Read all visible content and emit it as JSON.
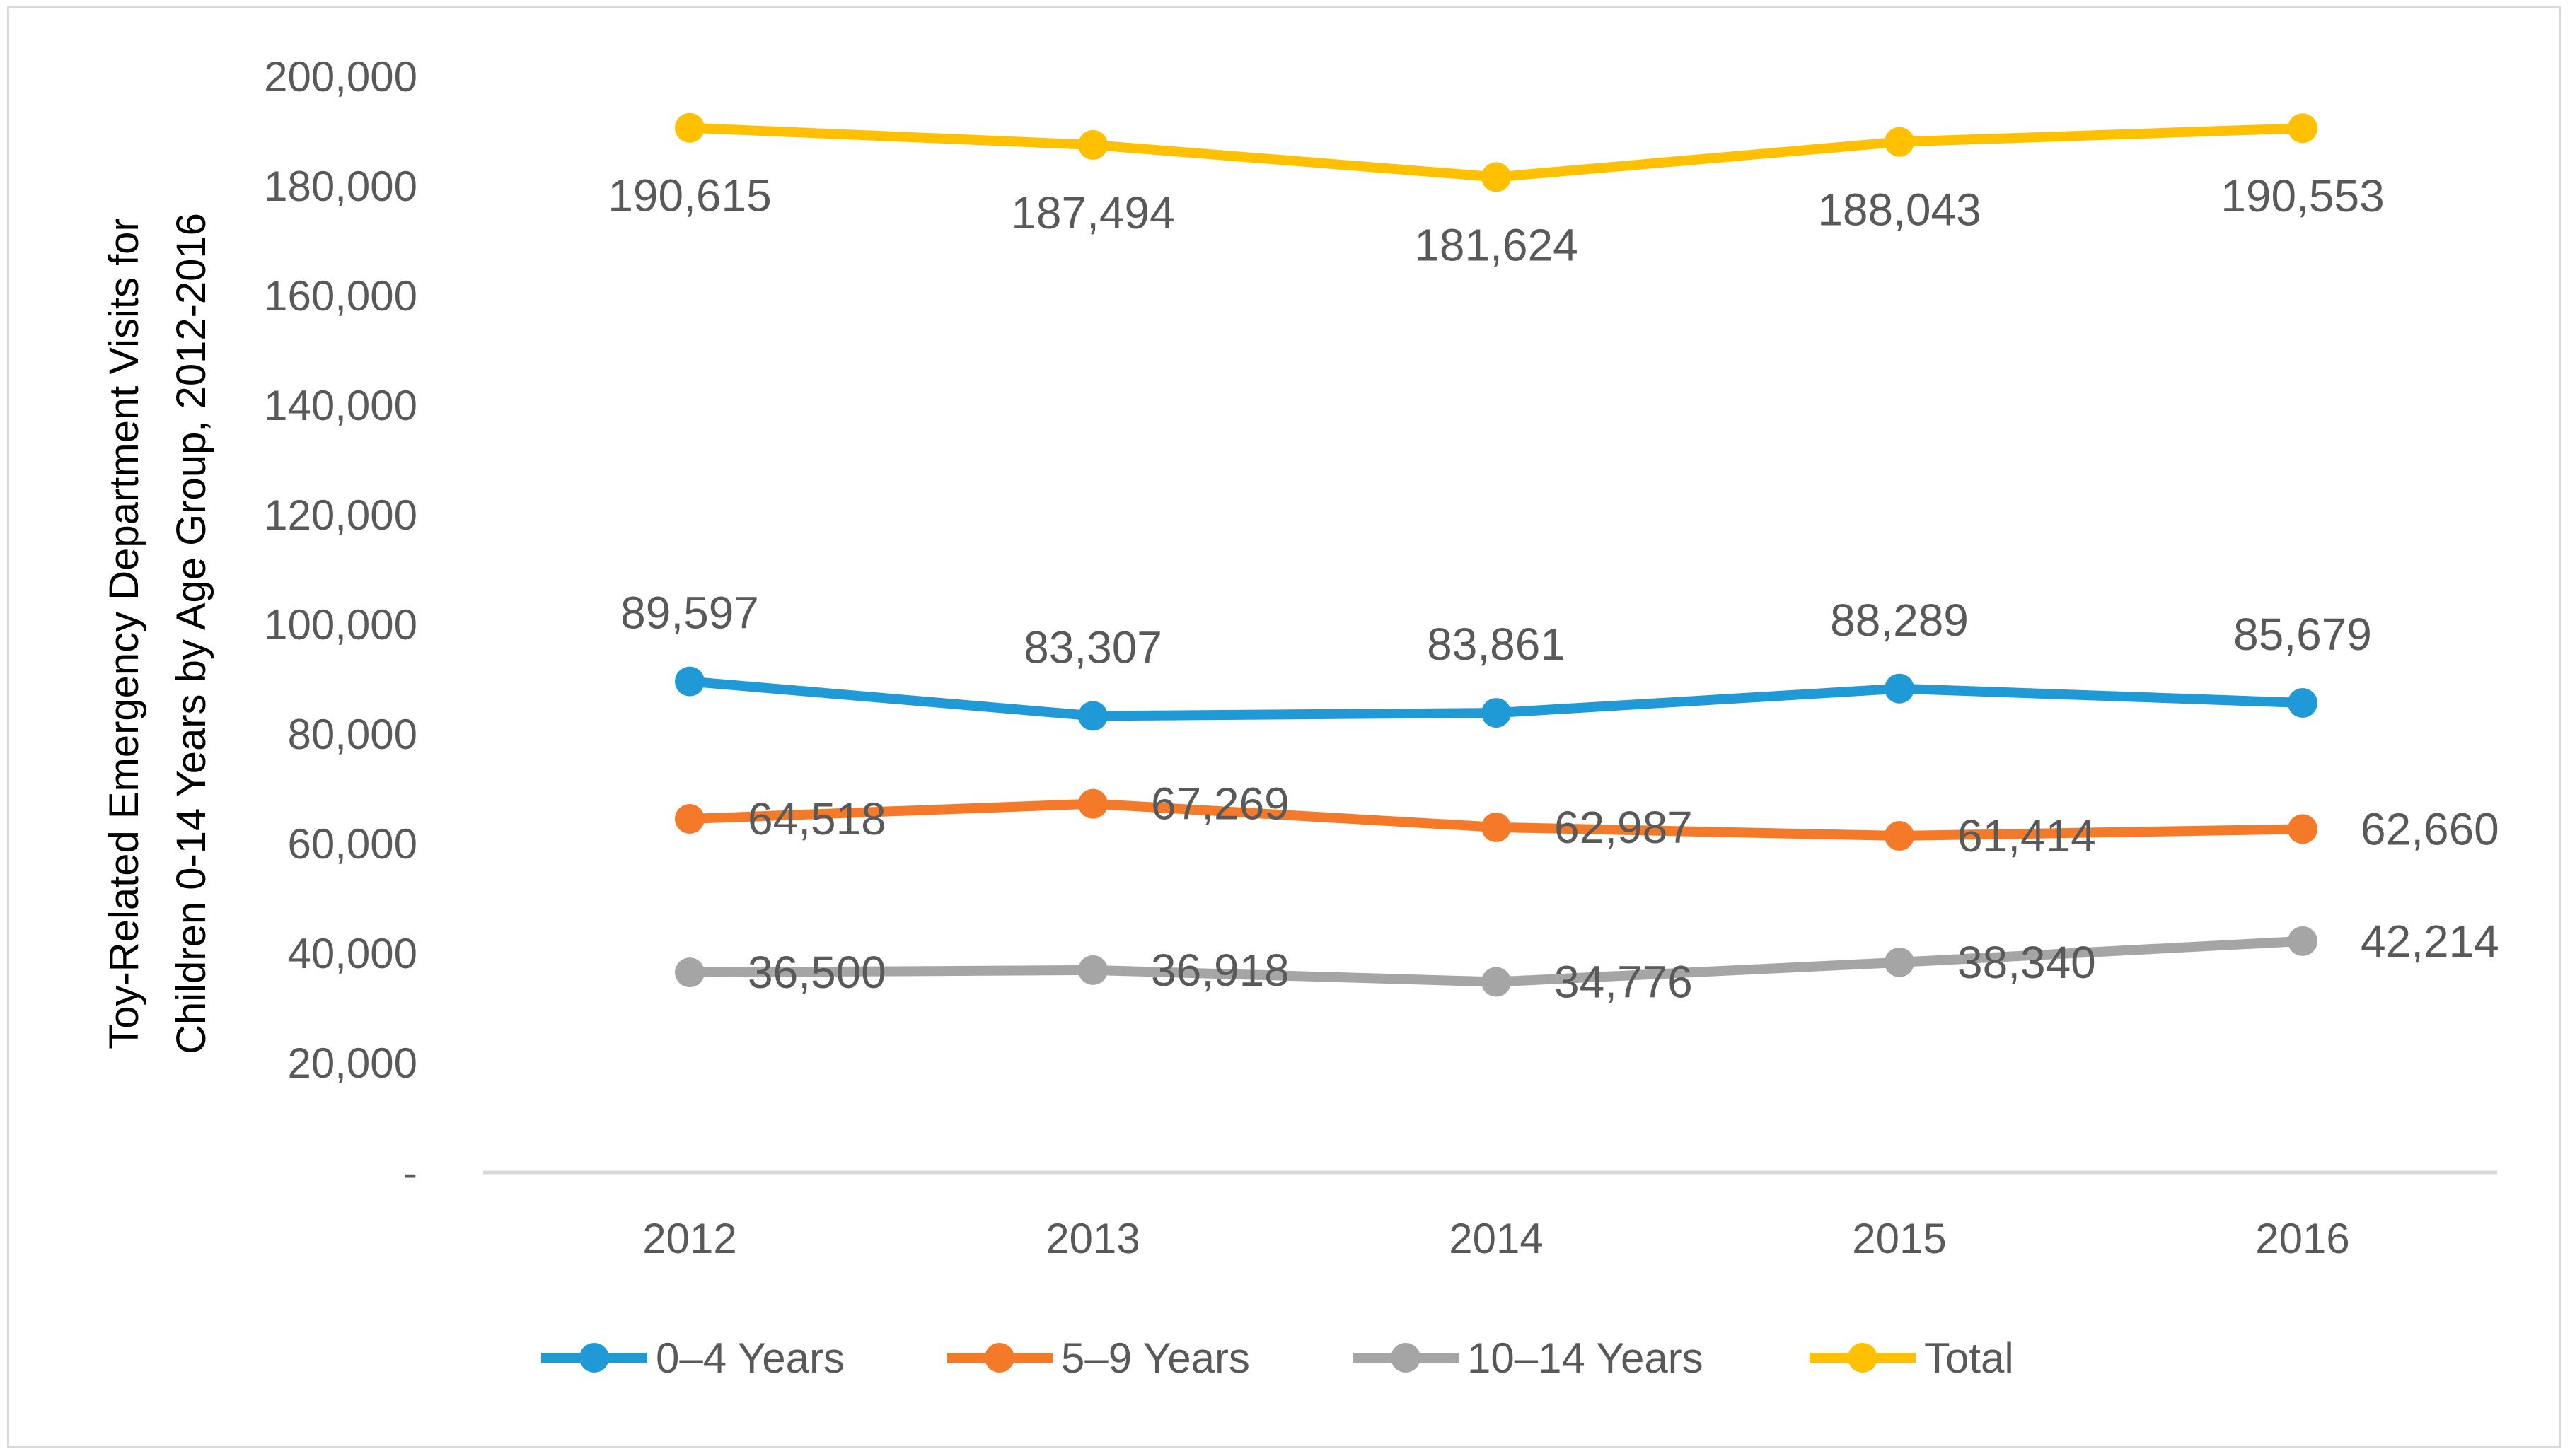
{
  "chart_data": {
    "type": "line",
    "title": "",
    "xlabel": "",
    "ylabel_lines": [
      "Toy-Related Emergency Department Visits for",
      "Children 0-14 Years by Age Group, 2012-2016"
    ],
    "categories": [
      "2012",
      "2013",
      "2014",
      "2015",
      "2016"
    ],
    "ylim": [
      0,
      200000
    ],
    "yticks": [
      0,
      20000,
      40000,
      60000,
      80000,
      100000,
      120000,
      140000,
      160000,
      180000,
      200000
    ],
    "ytick_labels": [
      "-",
      "20,000",
      "40,000",
      "60,000",
      "80,000",
      "100,000",
      "120,000",
      "140,000",
      "160,000",
      "180,000",
      "200,000"
    ],
    "grid": false,
    "legend_position": "bottom",
    "series": [
      {
        "name": "0–4 Years",
        "color": "#1f9ad6",
        "values": [
          89597,
          83307,
          83861,
          88289,
          85679
        ],
        "labels": [
          "89,597",
          "83,307",
          "83,861",
          "88,289",
          "85,679"
        ],
        "label_position": "above"
      },
      {
        "name": "5–9 Years",
        "color": "#f47a2a",
        "values": [
          64518,
          67269,
          62987,
          61414,
          62660
        ],
        "labels": [
          "64,518",
          "67,269",
          "62,987",
          "61,414",
          "62,660"
        ],
        "label_position": "right"
      },
      {
        "name": "10–14 Years",
        "color": "#a5a5a5",
        "values": [
          36500,
          36918,
          34776,
          38340,
          42214
        ],
        "labels": [
          "36,500",
          "36,918",
          "34,776",
          "38,340",
          "42,214"
        ],
        "label_position": "right"
      },
      {
        "name": "Total",
        "color": "#ffc000",
        "values": [
          190615,
          187494,
          181624,
          188043,
          190553
        ],
        "labels": [
          "190,615",
          "187,494",
          "181,624",
          "188,043",
          "190,553"
        ],
        "label_position": "below"
      }
    ]
  }
}
